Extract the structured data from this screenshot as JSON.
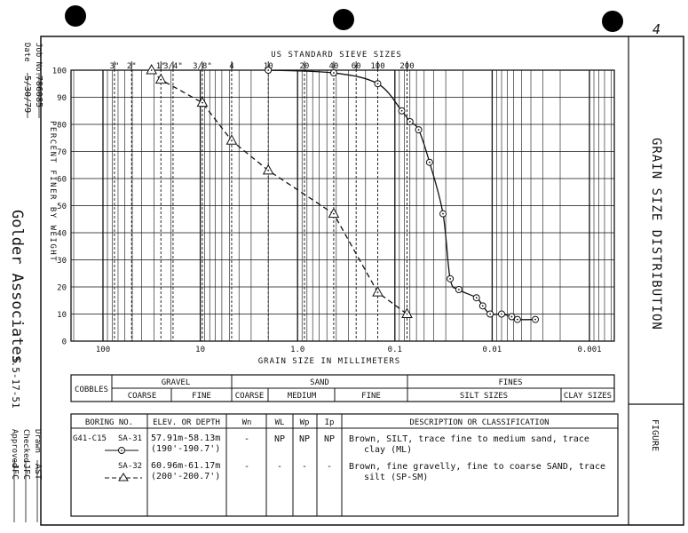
{
  "page_mark": "4",
  "side_left": {
    "date_label": "Date",
    "date_value": "5/30/79",
    "job_label": "Job No.",
    "job_value": "786085",
    "company": "Golder Associates",
    "code": "3.5-17-51",
    "drawn_label": "Drawn",
    "drawn_value": "AST",
    "checked_label": "Checked",
    "checked_value": "JFC",
    "approved_label": "Approved",
    "approved_value": "JFC"
  },
  "side_right": {
    "title": "GRAIN  SIZE  DISTRIBUTION",
    "figure_label": "FIGURE"
  },
  "sieve": {
    "title": "US STANDARD SIEVE SIZES",
    "labels": [
      "3\"",
      "2\"",
      "1\"",
      "3/4\"",
      "3/8\"",
      "4",
      "10",
      "20",
      "40",
      "60",
      "100",
      "200"
    ]
  },
  "classification": {
    "cobbles": "COBBLES",
    "gravel": "GRAVEL",
    "gravel_coarse": "COARSE",
    "gravel_fine": "FINE",
    "sand": "SAND",
    "sand_coarse": "COARSE",
    "sand_medium": "MEDIUM",
    "sand_fine": "FINE",
    "fines": "FINES",
    "silt": "SILT  SIZES",
    "clay": "CLAY SIZES"
  },
  "legend_table": {
    "headers": {
      "boring": "BORING NO.",
      "elev": "ELEV. OR DEPTH",
      "wn": "Wn",
      "wl": "WL",
      "wp": "Wp",
      "ip": "Ip",
      "desc": "DESCRIPTION  OR  CLASSIFICATION"
    },
    "rows": [
      {
        "boring": "G41-C15",
        "sample": "SA-31",
        "elev1": "57.91m-58.13m",
        "elev2": "(190'-190.7')",
        "wn": "-",
        "wl": "NP",
        "wp": "NP",
        "ip": "NP",
        "desc1": "Brown, SILT, trace fine to medium sand, trace",
        "desc2": "clay (ML)"
      },
      {
        "boring": "",
        "sample": "SA-32",
        "elev1": "60.96m-61.17m",
        "elev2": "(200'-200.7')",
        "wn": "-",
        "wl": "-",
        "wp": "-",
        "ip": "-",
        "desc1": "Brown, fine gravelly, fine to coarse SAND, trace",
        "desc2": "silt (SP-SM)"
      }
    ]
  },
  "chart_data": {
    "type": "line",
    "xscale": "log",
    "xreversed": true,
    "xlim": [
      200,
      0.0005
    ],
    "ylim": [
      0,
      100
    ],
    "xlabel": "GRAIN SIZE IN MILLIMETERS",
    "ylabel": "PERCENT FINER BY WEIGHT",
    "x_tick_labels": [
      "100",
      "10",
      "1.0",
      "0.1",
      "0.01",
      "0.001"
    ],
    "x_ticks": [
      100,
      10,
      1,
      0.1,
      0.01,
      0.001
    ],
    "y_ticks": [
      0,
      10,
      20,
      30,
      40,
      50,
      60,
      70,
      80,
      90,
      100
    ],
    "grid": true,
    "sieve_sizes_mm": [
      76.2,
      50.8,
      25.4,
      19.05,
      9.525,
      4.76,
      2.0,
      0.85,
      0.425,
      0.25,
      0.15,
      0.075
    ],
    "series": [
      {
        "name": "SA-31",
        "marker": "circle",
        "line": "solid",
        "x": [
          2.0,
          0.425,
          0.15,
          0.085,
          0.07,
          0.057,
          0.044,
          0.032,
          0.027,
          0.022,
          0.0145,
          0.0125,
          0.0105,
          0.008,
          0.0063,
          0.0055,
          0.0036
        ],
        "y": [
          100,
          99,
          95,
          85,
          81,
          78,
          66,
          47,
          23,
          19,
          16,
          13,
          10,
          10,
          9,
          8,
          8
        ]
      },
      {
        "name": "SA-32",
        "marker": "triangle",
        "line": "dashed",
        "x": [
          31.7,
          25.4,
          9.525,
          4.76,
          2.0,
          0.425,
          0.15,
          0.075
        ],
        "y": [
          100,
          96.5,
          88,
          74,
          63,
          47,
          18,
          10
        ]
      }
    ]
  }
}
